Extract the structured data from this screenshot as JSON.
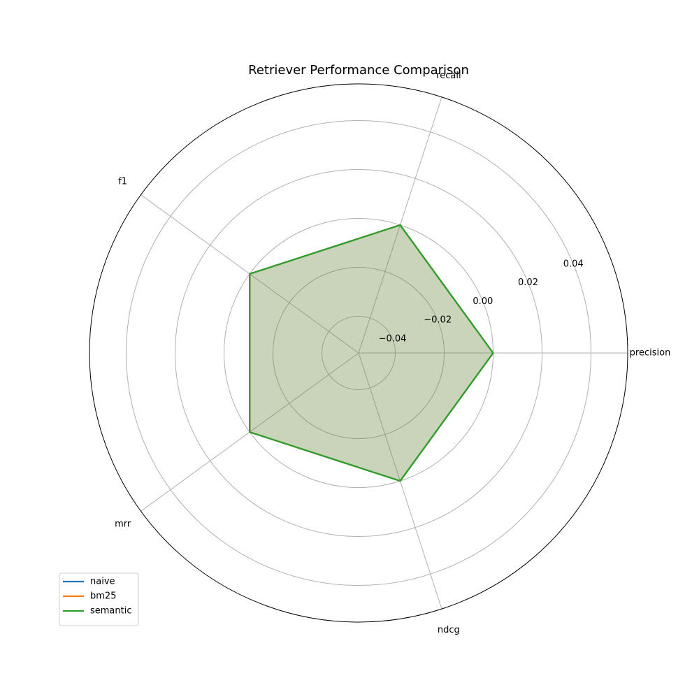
{
  "chart_data": {
    "type": "radar",
    "title": "Retriever Performance Comparison",
    "categories": [
      "precision",
      "recall",
      "f1",
      "mrr",
      "ndcg"
    ],
    "rlim": [
      -0.055,
      0.055
    ],
    "rticks": [
      -0.04,
      -0.02,
      0.0,
      0.02,
      0.04
    ],
    "rtick_labels": [
      "−0.04",
      "−0.02",
      "0.00",
      "0.02",
      "0.04"
    ],
    "series": [
      {
        "name": "naive",
        "color": "#1f77b4",
        "values": [
          0,
          0,
          0,
          0,
          0
        ]
      },
      {
        "name": "bm25",
        "color": "#ff7f0e",
        "values": [
          0,
          0,
          0,
          0,
          0
        ]
      },
      {
        "name": "semantic",
        "color": "#2ca02c",
        "values": [
          0,
          0,
          0,
          0,
          0
        ]
      }
    ],
    "fill_color": "#d6dccb",
    "grid": true,
    "legend_position": "bottom-left"
  }
}
